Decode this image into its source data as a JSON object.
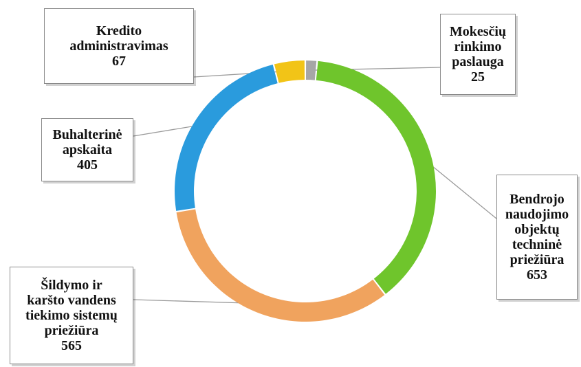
{
  "chart_data": {
    "type": "donut",
    "title": "",
    "start_angle_deg": 0,
    "direction": "clockwise",
    "slices": [
      {
        "id": "mokesciu",
        "label": "Mokesčių\nrinkimo\npaslauga",
        "value": 25,
        "color": "#a6a6a6"
      },
      {
        "id": "bendrojo",
        "label": "Bendrojo\nnaudojimo\nobjektų\ntechninė\npriežiūra",
        "value": 653,
        "color": "#6fc52c"
      },
      {
        "id": "sildymo",
        "label": "Šildymo ir\nkaršto vandens\ntiekimo sistemų\npriežiūra",
        "value": 565,
        "color": "#f0a35e"
      },
      {
        "id": "buhalterine",
        "label": "Buhalterinė\napskaita",
        "value": 405,
        "color": "#2a9bdd"
      },
      {
        "id": "kredito",
        "label": "Kredito\nadministravimas",
        "value": 67,
        "color": "#f2c417"
      }
    ]
  }
}
